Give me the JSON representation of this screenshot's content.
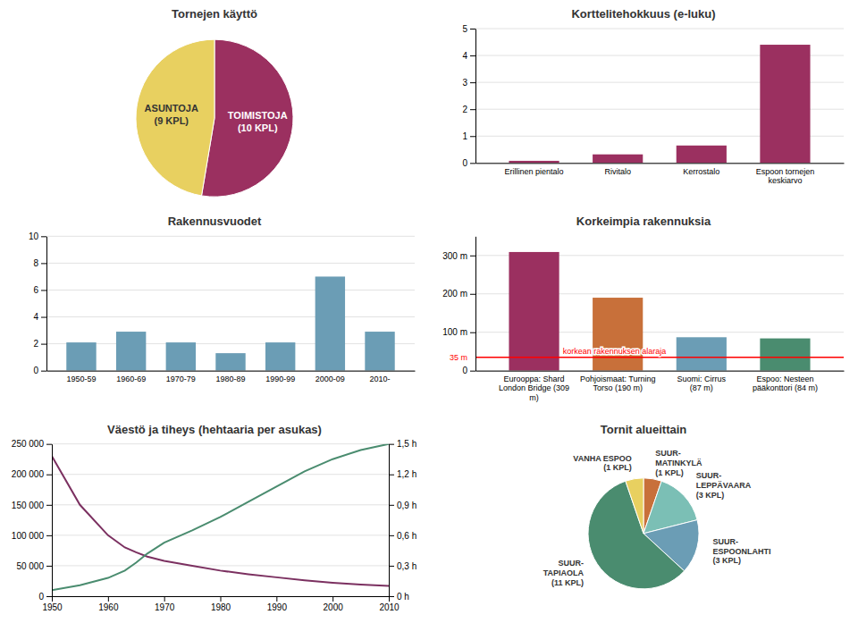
{
  "chart_data": [
    {
      "type": "pie",
      "title": "Tornejen käyttö",
      "categories": [
        "TOIMISTOJA\n(10 KPL)",
        "ASUNTOJA\n(9 KPL)"
      ],
      "values": [
        10,
        9
      ],
      "colors": [
        "#9B3060",
        "#E8D060"
      ]
    },
    {
      "type": "bar",
      "title": "Korttelitehokkuus (e-luku)",
      "categories": [
        "Erillinen pientalo",
        "Rivitalo",
        "Kerrostalo",
        "Espoon tornejen keskiarvo"
      ],
      "values": [
        0.08,
        0.32,
        0.65,
        4.4
      ],
      "colors": [
        "#9B3060",
        "#9B3060",
        "#9B3060",
        "#9B3060"
      ],
      "ylim": [
        0,
        5
      ],
      "yticks": [
        0,
        1,
        2,
        3,
        4,
        5
      ],
      "grid": true
    },
    {
      "type": "bar",
      "title": "Rakennusvuodet",
      "categories": [
        "1950-59",
        "1960-69",
        "1970-79",
        "1980-89",
        "1990-99",
        "2000-09",
        "2010-"
      ],
      "values": [
        2.1,
        2.9,
        2.1,
        1.3,
        2.1,
        7.0,
        2.9
      ],
      "color": "#6B9DB5",
      "ylim": [
        0,
        10
      ],
      "yticks": [
        0,
        2,
        4,
        6,
        8,
        10
      ],
      "grid": true
    },
    {
      "type": "bar",
      "title": "Korkeimpia rakennuksia",
      "categories": [
        "Eurooppa: Shard\nLondon Bridge (309 m)",
        "Pohjoismaat: Turning Torso (190 m)",
        "Suomi: Cirrus\n(87 m)",
        "Espoo: Nesteen pääkonttori (84 m)"
      ],
      "values": [
        309,
        190,
        87,
        84
      ],
      "colors": [
        "#9B3060",
        "#C8703A",
        "#6B9DB5",
        "#4A8C6F"
      ],
      "ylim": [
        0,
        350
      ],
      "yticks": [
        0,
        {
          "value": 100,
          "label": "100 m"
        },
        {
          "value": 200,
          "label": "200 m"
        },
        {
          "value": 300,
          "label": "300 m"
        }
      ],
      "grid": true,
      "annotations": [
        {
          "type": "hline",
          "value": 35,
          "label": "35 m",
          "text": "korkean rakennuksen alaraja",
          "color": "red"
        }
      ]
    },
    {
      "type": "line",
      "title": "Väestö ja tiheys (hehtaaria per asukas)",
      "x": [
        1950,
        1955,
        1960,
        1963,
        1965,
        1967,
        1970,
        1975,
        1980,
        1985,
        1990,
        1995,
        2000,
        2005,
        2010
      ],
      "series": [
        {
          "color": "#7B3060",
          "values": [
            230000,
            150000,
            100000,
            80000,
            72000,
            65000,
            58000,
            50000,
            42000,
            36000,
            31000,
            26000,
            22000,
            19000,
            17000
          ]
        },
        {
          "color": "#4A8C6F",
          "axis": "y2",
          "values": [
            10000,
            18000,
            30000,
            42000,
            55000,
            70000,
            88000,
            108000,
            130000,
            155000,
            180000,
            205000,
            225000,
            240000,
            250000
          ]
        }
      ],
      "xlim": [
        1950,
        2010
      ],
      "xticks": [
        1950,
        1960,
        1970,
        1980,
        1990,
        2000,
        2010
      ],
      "ylim": [
        0,
        250000
      ],
      "yticks": [
        0,
        {
          "value": 50000,
          "label": "50 000"
        },
        {
          "value": 100000,
          "label": "100 000"
        },
        {
          "value": 150000,
          "label": "150 000"
        },
        {
          "value": 200000,
          "label": "200 000"
        },
        {
          "value": 250000,
          "label": "250 000"
        }
      ],
      "y2lim": [
        0,
        250000
      ],
      "y2ticks": [
        {
          "value": 0,
          "label": "0 h"
        },
        {
          "value": 50000,
          "label": "0,3 h"
        },
        {
          "value": 100000,
          "label": "0,6 h"
        },
        {
          "value": 150000,
          "label": "0,9 h"
        },
        {
          "value": 200000,
          "label": "1,2 h"
        },
        {
          "value": 250000,
          "label": "1,5 h"
        }
      ],
      "grid": true
    },
    {
      "type": "pie",
      "title": "Tornit alueittain",
      "categories": [
        "SUUR-\nMATINKYLÄ\n(1 KPL)",
        "SUUR-\nLEPPÄVAARA\n(3 KPL)",
        "SUUR-\nESPOONLAHTI\n(3 KPL)",
        "SUUR-\nTAPIAOLA\n(11 KPL)",
        "VANHA ESPOO\n(1 KPL)"
      ],
      "values": [
        1,
        3,
        3,
        11,
        1
      ],
      "colors": [
        "#C8703A",
        "#7BBFB5",
        "#6B9DB5",
        "#4A8C6F",
        "#E8D060"
      ]
    }
  ]
}
